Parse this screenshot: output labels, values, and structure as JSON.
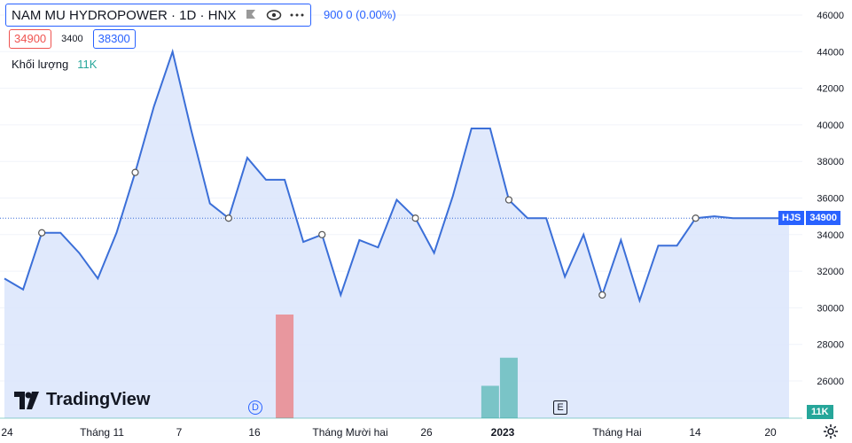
{
  "legend": {
    "title": "NAM MU HYDROPOWER · 1D · HNX",
    "change": "900  0 (0.00%)",
    "low": "34900",
    "mid": "3400",
    "high": "38300"
  },
  "volume_legend": {
    "label": "Khối lượng",
    "value": "11K"
  },
  "price_tag": {
    "symbol": "HJS",
    "price": "34900"
  },
  "volume_tag": "11K",
  "logo_text": "TradingView",
  "markers": {
    "dividend": "D",
    "earnings": "E"
  },
  "colors": {
    "line": "#3b6fd8",
    "area": "#dbe5fc",
    "accent": "#2962ff",
    "vol_up": "#26a69a",
    "vol_down": "#ef5350"
  },
  "chart_data": {
    "type": "area",
    "ylim": [
      24500,
      46500
    ],
    "y_ticks": [
      26000,
      28000,
      30000,
      32000,
      34000,
      36000,
      38000,
      40000,
      42000,
      44000,
      46000
    ],
    "x_tick_labels": [
      "24",
      "Tháng 11",
      "7",
      "16",
      "Tháng Mười hai",
      "26",
      "2023",
      "Tháng Hai",
      "14",
      "20"
    ],
    "series": [
      {
        "values": [
          31600,
          31000,
          34100,
          34100,
          33000,
          31600,
          34100,
          37400,
          41000,
          44000,
          39700,
          35700,
          34900,
          38200,
          37000,
          37000,
          33600,
          34000,
          30700,
          33700,
          33300,
          35900,
          34900,
          33000,
          36100,
          39800,
          39800,
          35900,
          34900,
          34900,
          31700,
          34000,
          30700,
          33700,
          30400,
          33400,
          33400,
          34900,
          35000,
          34900,
          34900,
          34900,
          34900
        ]
      }
    ],
    "volume_series": [
      {
        "index": 15,
        "value": 9600,
        "direction": "down"
      },
      {
        "index": 26,
        "value": 3000,
        "direction": "up"
      },
      {
        "index": 27,
        "value": 5600,
        "direction": "up"
      }
    ],
    "last_price": 34900
  }
}
